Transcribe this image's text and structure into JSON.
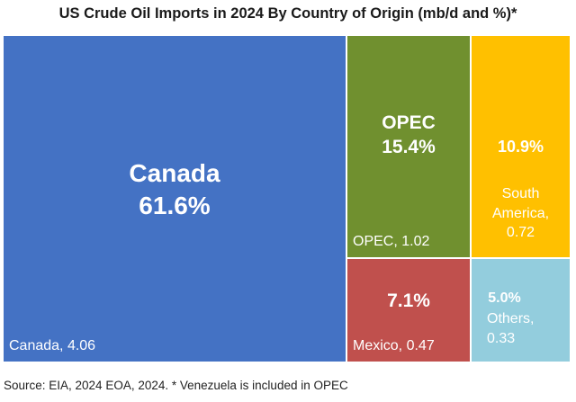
{
  "chart_data": {
    "type": "treemap",
    "title": "US Crude Oil Imports in 2024 By Country of Origin (mb/d and %)*",
    "unit": "mb/d",
    "items": [
      {
        "name": "Canada",
        "display_name": "Canada",
        "percent_label": "61.6%",
        "value_label": "Canada, 4.06",
        "percent": 61.6,
        "value": 4.06,
        "color": "#4472c4"
      },
      {
        "name": "OPEC",
        "display_name": "OPEC",
        "percent_label": "15.4%",
        "value_label": "OPEC, 1.02",
        "percent": 15.4,
        "value": 1.02,
        "color": "#70902f"
      },
      {
        "name": "South America",
        "percent_label": "10.9%",
        "value_label_line1": "South",
        "value_label_line2": "America,",
        "value_label_line3": "0.72",
        "percent": 10.9,
        "value": 0.72,
        "color": "#ffc000"
      },
      {
        "name": "Mexico",
        "percent_label": "7.1%",
        "value_label": "Mexico, 0.47",
        "percent": 7.1,
        "value": 0.47,
        "color": "#c0504d"
      },
      {
        "name": "Others",
        "percent_label": "5.0%",
        "value_label_line1": "Others,",
        "value_label_line2": "0.33",
        "percent": 5.0,
        "value": 0.33,
        "color": "#93cddd"
      }
    ],
    "source": "Source: EIA, 2024  EOA, 2024. * Venezuela is included in OPEC"
  }
}
